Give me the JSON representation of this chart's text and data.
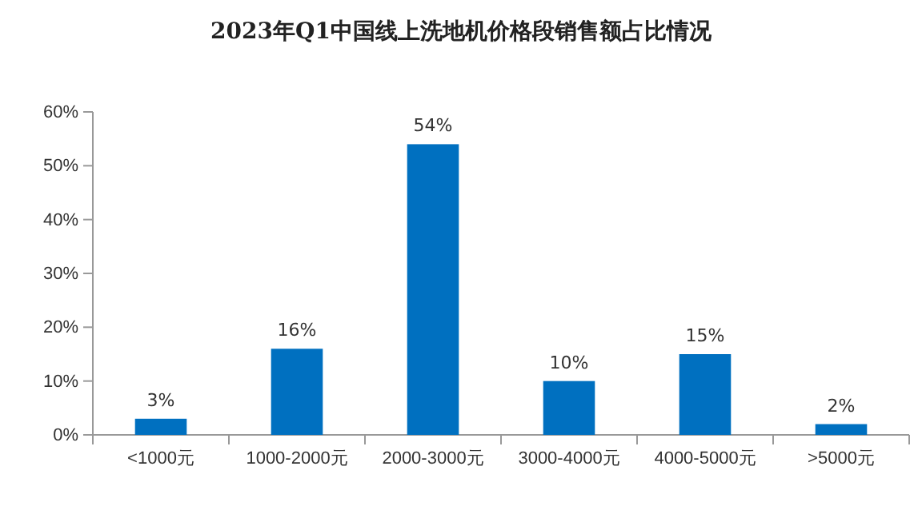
{
  "chart_data": {
    "type": "bar",
    "title": "2023年Q1中国线上洗地机价格段销售额占比情况",
    "categories": [
      "<1000元",
      "1000-2000元",
      "2000-3000元",
      "3000-4000元",
      "4000-5000元",
      ">5000元"
    ],
    "values": [
      3,
      16,
      54,
      10,
      15,
      2
    ],
    "value_labels": [
      "3%",
      "16%",
      "54%",
      "10%",
      "15%",
      "2%"
    ],
    "color": "#0070c0",
    "ylim": [
      0,
      60
    ],
    "yticks": [
      {
        "value": 0,
        "label": "0%"
      },
      {
        "value": 10,
        "label": "10%"
      },
      {
        "value": 20,
        "label": "20%"
      },
      {
        "value": 30,
        "label": "30%"
      },
      {
        "value": 40,
        "label": "40%"
      },
      {
        "value": 50,
        "label": "50%"
      },
      {
        "value": 60,
        "label": "60%"
      }
    ],
    "grid": false
  }
}
